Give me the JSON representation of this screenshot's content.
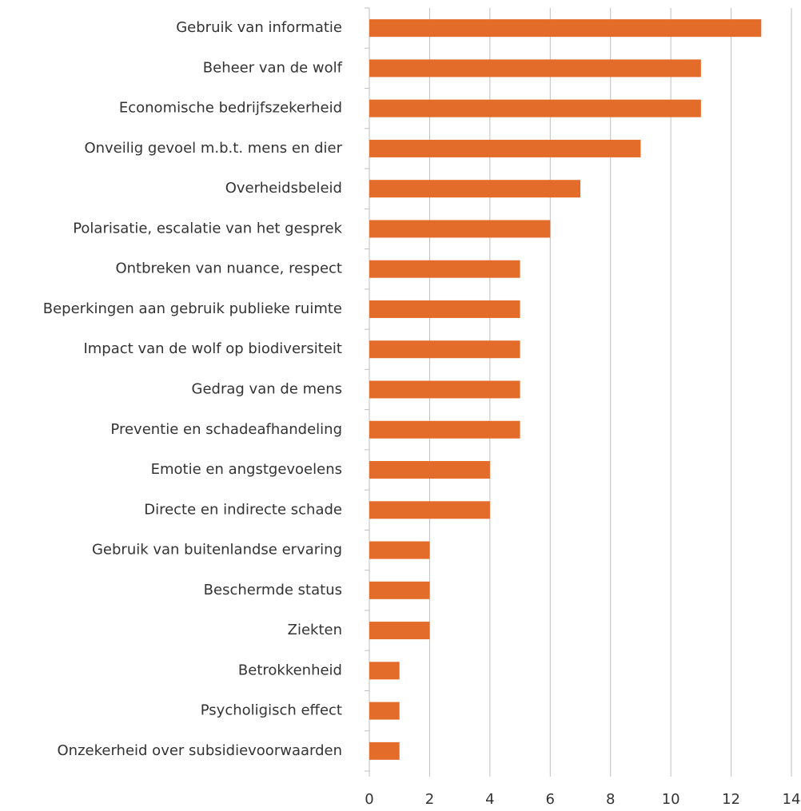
{
  "chart_data": {
    "type": "bar",
    "orientation": "horizontal",
    "categories": [
      "Gebruik van informatie",
      "Beheer van de wolf",
      "Economische bedrijfszekerheid",
      "Onveilig gevoel m.b.t. mens en dier",
      "Overheidsbeleid",
      "Polarisatie, escalatie van het gesprek",
      "Ontbreken van nuance, respect",
      "Beperkingen aan gebruik publieke ruimte",
      "Impact van de wolf op biodiversiteit",
      "Gedrag van de mens",
      "Preventie en schadeafhandeling",
      "Emotie en angstgevoelens",
      "Directe en indirecte schade",
      "Gebruik van buitenlandse ervaring",
      "Beschermde status",
      "Ziekten",
      "Betrokkenheid",
      "Psycholigisch effect",
      "Onzekerheid over subsidievoorwaarden"
    ],
    "values": [
      13,
      11,
      11,
      9,
      7,
      6,
      5,
      5,
      5,
      5,
      5,
      4,
      4,
      2,
      2,
      2,
      1,
      1,
      1
    ],
    "color": "#e36c2a",
    "xlim": [
      0,
      14
    ],
    "xticks": [
      0,
      2,
      4,
      6,
      8,
      10,
      12,
      14
    ],
    "grid": true
  }
}
